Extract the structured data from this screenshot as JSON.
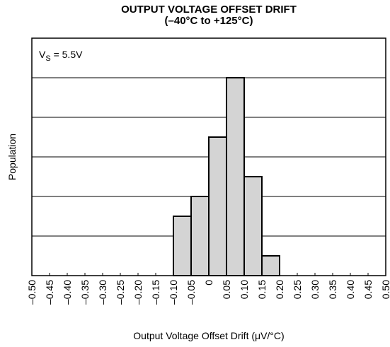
{
  "chart_data": {
    "type": "histogram",
    "title": "OUTPUT VOLTAGE OFFSET DRIFT",
    "subtitle": "(–40°C to +125°C)",
    "annotation": {
      "base": "V",
      "subscript": "S",
      "rest": " = 5.5V"
    },
    "x_label": "Output Voltage Offset Drift (μV/°C)",
    "y_label": "Population",
    "bins": [
      -0.1,
      -0.05,
      0,
      0.05,
      0.1,
      0.15,
      0.2
    ],
    "values": [
      1.5,
      2,
      3.5,
      5,
      2.5,
      0.5
    ],
    "color": "#d4d4d4",
    "xlim": [
      -0.5,
      0.5
    ],
    "xticks": [
      {
        "value": -0.5,
        "label": "–0.50"
      },
      {
        "value": -0.45,
        "label": "–0.45"
      },
      {
        "value": -0.4,
        "label": "–0.40"
      },
      {
        "value": -0.35,
        "label": "–0.35"
      },
      {
        "value": -0.3,
        "label": "–0.30"
      },
      {
        "value": -0.25,
        "label": "–0.25"
      },
      {
        "value": -0.2,
        "label": "–0.20"
      },
      {
        "value": -0.15,
        "label": "–0.15"
      },
      {
        "value": -0.1,
        "label": "–0.10"
      },
      {
        "value": -0.05,
        "label": "–0.05"
      },
      0,
      0.05,
      {
        "value": 0.1,
        "label": "0.10"
      },
      0.15,
      {
        "value": 0.2,
        "label": "0.20"
      },
      0.25,
      {
        "value": 0.3,
        "label": "0.30"
      },
      0.35,
      {
        "value": 0.4,
        "label": "0.40"
      },
      0.45,
      {
        "value": 0.5,
        "label": "0.50"
      }
    ],
    "ylim": [
      0,
      6
    ],
    "yticks": [
      1,
      2,
      3,
      4,
      5
    ],
    "grid": true
  }
}
